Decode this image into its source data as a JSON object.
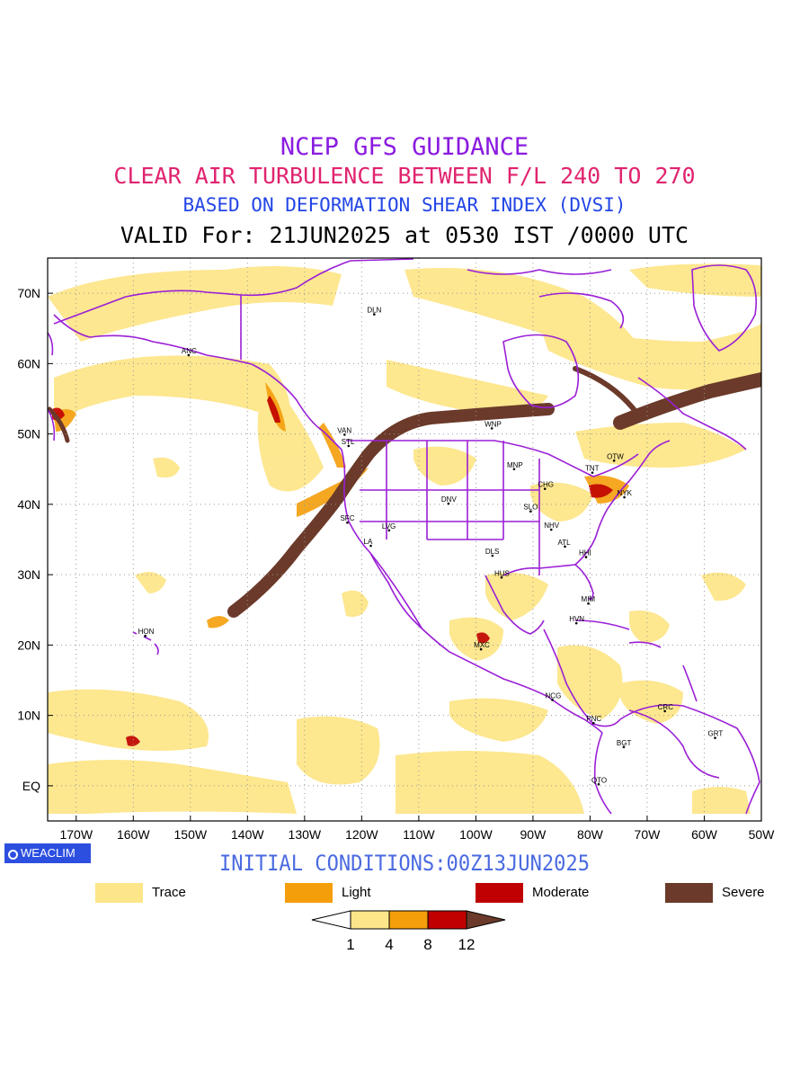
{
  "titles": {
    "line1": "NCEP GFS GUIDANCE",
    "line2": "CLEAR AIR TURBULENCE BETWEEN F/L 240 TO 270",
    "line3": "BASED ON DEFORMATION SHEAR INDEX (DVSI)",
    "line4": "VALID For: 21JUN2025 at 0530 IST /0000 UTC"
  },
  "axes": {
    "lon_labels": [
      "170W",
      "160W",
      "150W",
      "140W",
      "130W",
      "120W",
      "110W",
      "100W",
      "90W",
      "80W",
      "70W",
      "60W",
      "50W"
    ],
    "lat_labels": [
      "70N",
      "60N",
      "50N",
      "40N",
      "30N",
      "20N",
      "10N",
      "EQ"
    ],
    "lon_range": [
      -175,
      -50
    ],
    "lat_range": [
      -5,
      75
    ]
  },
  "cities": [
    {
      "name": "DLN",
      "lon": -117.8,
      "lat": 67.0
    },
    {
      "name": "ANC",
      "lon": -150.3,
      "lat": 61.2
    },
    {
      "name": "VAN",
      "lon": -123.0,
      "lat": 49.9
    },
    {
      "name": "STL",
      "lon": -122.3,
      "lat": 48.3
    },
    {
      "name": "WNP",
      "lon": -97.2,
      "lat": 50.8
    },
    {
      "name": "MNP",
      "lon": -93.3,
      "lat": 45.0
    },
    {
      "name": "OTW",
      "lon": -75.8,
      "lat": 46.2
    },
    {
      "name": "TNT",
      "lon": -79.6,
      "lat": 44.5
    },
    {
      "name": "CHG",
      "lon": -87.9,
      "lat": 42.2
    },
    {
      "name": "NYK",
      "lon": -74.0,
      "lat": 41.0
    },
    {
      "name": "DNV",
      "lon": -104.8,
      "lat": 40.1
    },
    {
      "name": "SFC",
      "lon": -122.5,
      "lat": 37.4
    },
    {
      "name": "SLO",
      "lon": -90.4,
      "lat": 39.0
    },
    {
      "name": "LVG",
      "lon": -115.2,
      "lat": 36.3
    },
    {
      "name": "LA",
      "lon": -118.4,
      "lat": 34.1
    },
    {
      "name": "NHV",
      "lon": -86.8,
      "lat": 36.4
    },
    {
      "name": "ATL",
      "lon": -84.4,
      "lat": 34.0
    },
    {
      "name": "DLS",
      "lon": -97.1,
      "lat": 32.7
    },
    {
      "name": "HHI",
      "lon": -80.7,
      "lat": 32.5
    },
    {
      "name": "HUS",
      "lon": -95.5,
      "lat": 29.6
    },
    {
      "name": "MIM",
      "lon": -80.3,
      "lat": 25.9
    },
    {
      "name": "HVN",
      "lon": -82.4,
      "lat": 23.1
    },
    {
      "name": "HON",
      "lon": -157.9,
      "lat": 21.3
    },
    {
      "name": "MXC",
      "lon": -99.1,
      "lat": 19.4
    },
    {
      "name": "NCG",
      "lon": -86.6,
      "lat": 12.2
    },
    {
      "name": "CRC",
      "lon": -66.9,
      "lat": 10.6
    },
    {
      "name": "PNC",
      "lon": -79.4,
      "lat": 8.9
    },
    {
      "name": "GRT",
      "lon": -58.1,
      "lat": 6.8
    },
    {
      "name": "BGT",
      "lon": -74.1,
      "lat": 5.5
    },
    {
      "name": "QTO",
      "lon": -78.5,
      "lat": 0.2
    }
  ],
  "brand_badge": "WEACLIM",
  "initial_conditions": "INITIAL CONDITIONS:00Z13JUN2025",
  "legend": [
    {
      "label": "Trace",
      "color": "#fde68a"
    },
    {
      "label": "Light",
      "color": "#f59e0b"
    },
    {
      "label": "Moderate",
      "color": "#c00000"
    },
    {
      "label": "Severe",
      "color": "#6b3a2a"
    }
  ],
  "colorbar": {
    "ticks": [
      "1",
      "4",
      "8",
      "12"
    ],
    "colors": [
      "#ffffff",
      "#fde68a",
      "#f59e0b",
      "#c00000",
      "#6b3a2a"
    ]
  },
  "colors": {
    "boundaries": "#9b1fd6",
    "jet": "#6b3a2a",
    "title1": "#8a1be0",
    "title2": "#e0246f",
    "title3": "#2346e6"
  }
}
